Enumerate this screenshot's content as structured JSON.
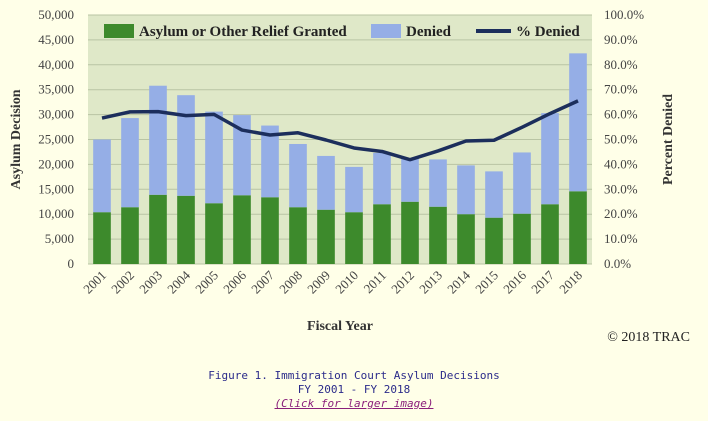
{
  "chart_data": {
    "type": "bar",
    "stacked": true,
    "categories": [
      "2001",
      "2002",
      "2003",
      "2004",
      "2005",
      "2006",
      "2007",
      "2008",
      "2009",
      "2010",
      "2011",
      "2012",
      "2013",
      "2014",
      "2015",
      "2016",
      "2017",
      "2018"
    ],
    "series": [
      {
        "name": "Asylum or Other Relief Granted",
        "axis": "left",
        "color": "#3d8a2c",
        "values": [
          10400,
          11400,
          13900,
          13700,
          12200,
          13800,
          13400,
          11400,
          10900,
          10400,
          12000,
          12500,
          11500,
          10000,
          9300,
          10100,
          12000,
          14600
        ]
      },
      {
        "name": "Denied",
        "axis": "left",
        "color": "#95aee6",
        "values": [
          14600,
          17900,
          21900,
          20200,
          18400,
          16100,
          14400,
          12700,
          10800,
          9100,
          10300,
          8700,
          9500,
          9800,
          9300,
          12300,
          18300,
          27700
        ]
      },
      {
        "name": "% Denied",
        "axis": "right",
        "type": "line",
        "color": "#1c2e5c",
        "values": [
          58.6,
          61.1,
          61.2,
          59.6,
          60.1,
          53.8,
          51.8,
          52.7,
          49.8,
          46.6,
          45.2,
          41.9,
          45.4,
          49.4,
          49.7,
          54.9,
          60.4,
          65.5
        ]
      }
    ],
    "xlabel": "Fiscal Year",
    "ylabel": "Asylum Decision",
    "ylabel_right": "Percent Denied",
    "ylim": [
      0,
      50000
    ],
    "ylim_right": [
      0,
      100
    ],
    "yticks": [
      "0",
      "5,000",
      "10,000",
      "15,000",
      "20,000",
      "25,000",
      "30,000",
      "35,000",
      "40,000",
      "45,000",
      "50,000"
    ],
    "yticks_right": [
      "0.0%",
      "10.0%",
      "20.0%",
      "30.0%",
      "40.0%",
      "50.0%",
      "60.0%",
      "70.0%",
      "80.0%",
      "90.0%",
      "100.0%"
    ],
    "grid": true,
    "legend_position": "top",
    "plot_background": "#dfe8c8"
  },
  "copyright": "© 2018 TRAC",
  "caption": {
    "line1": "Figure 1. Immigration Court Asylum Decisions",
    "line2": "FY 2001 - FY 2018",
    "link": "(Click for larger image)"
  }
}
